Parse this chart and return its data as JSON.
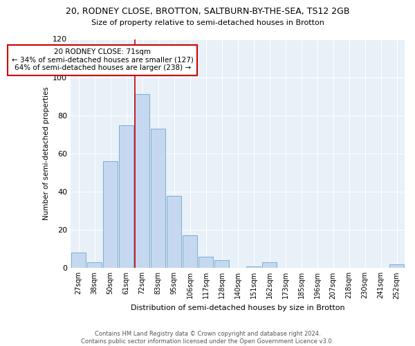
{
  "title_line1": "20, RODNEY CLOSE, BROTTON, SALTBURN-BY-THE-SEA, TS12 2GB",
  "title_line2": "Size of property relative to semi-detached houses in Brotton",
  "xlabel": "Distribution of semi-detached houses by size in Brotton",
  "ylabel": "Number of semi-detached properties",
  "categories": [
    "27sqm",
    "38sqm",
    "50sqm",
    "61sqm",
    "72sqm",
    "83sqm",
    "95sqm",
    "106sqm",
    "117sqm",
    "128sqm",
    "140sqm",
    "151sqm",
    "162sqm",
    "173sqm",
    "185sqm",
    "196sqm",
    "207sqm",
    "218sqm",
    "230sqm",
    "241sqm",
    "252sqm"
  ],
  "values": [
    8,
    3,
    56,
    75,
    91,
    73,
    38,
    17,
    6,
    4,
    0,
    1,
    3,
    0,
    0,
    0,
    0,
    0,
    0,
    0,
    2
  ],
  "bar_color": "#c5d8f0",
  "bar_edge_color": "#7aadd4",
  "highlight_bar_index": 4,
  "highlight_color": "#cc0000",
  "annotation_line1": "20 RODNEY CLOSE: 71sqm",
  "annotation_line2": "← 34% of semi-detached houses are smaller (127)",
  "annotation_line3": "64% of semi-detached houses are larger (238) →",
  "ylim": [
    0,
    120
  ],
  "yticks": [
    0,
    20,
    40,
    60,
    80,
    100,
    120
  ],
  "background_color": "#e8f0f8",
  "footer_line1": "Contains HM Land Registry data © Crown copyright and database right 2024.",
  "footer_line2": "Contains public sector information licensed under the Open Government Licence v3.0."
}
